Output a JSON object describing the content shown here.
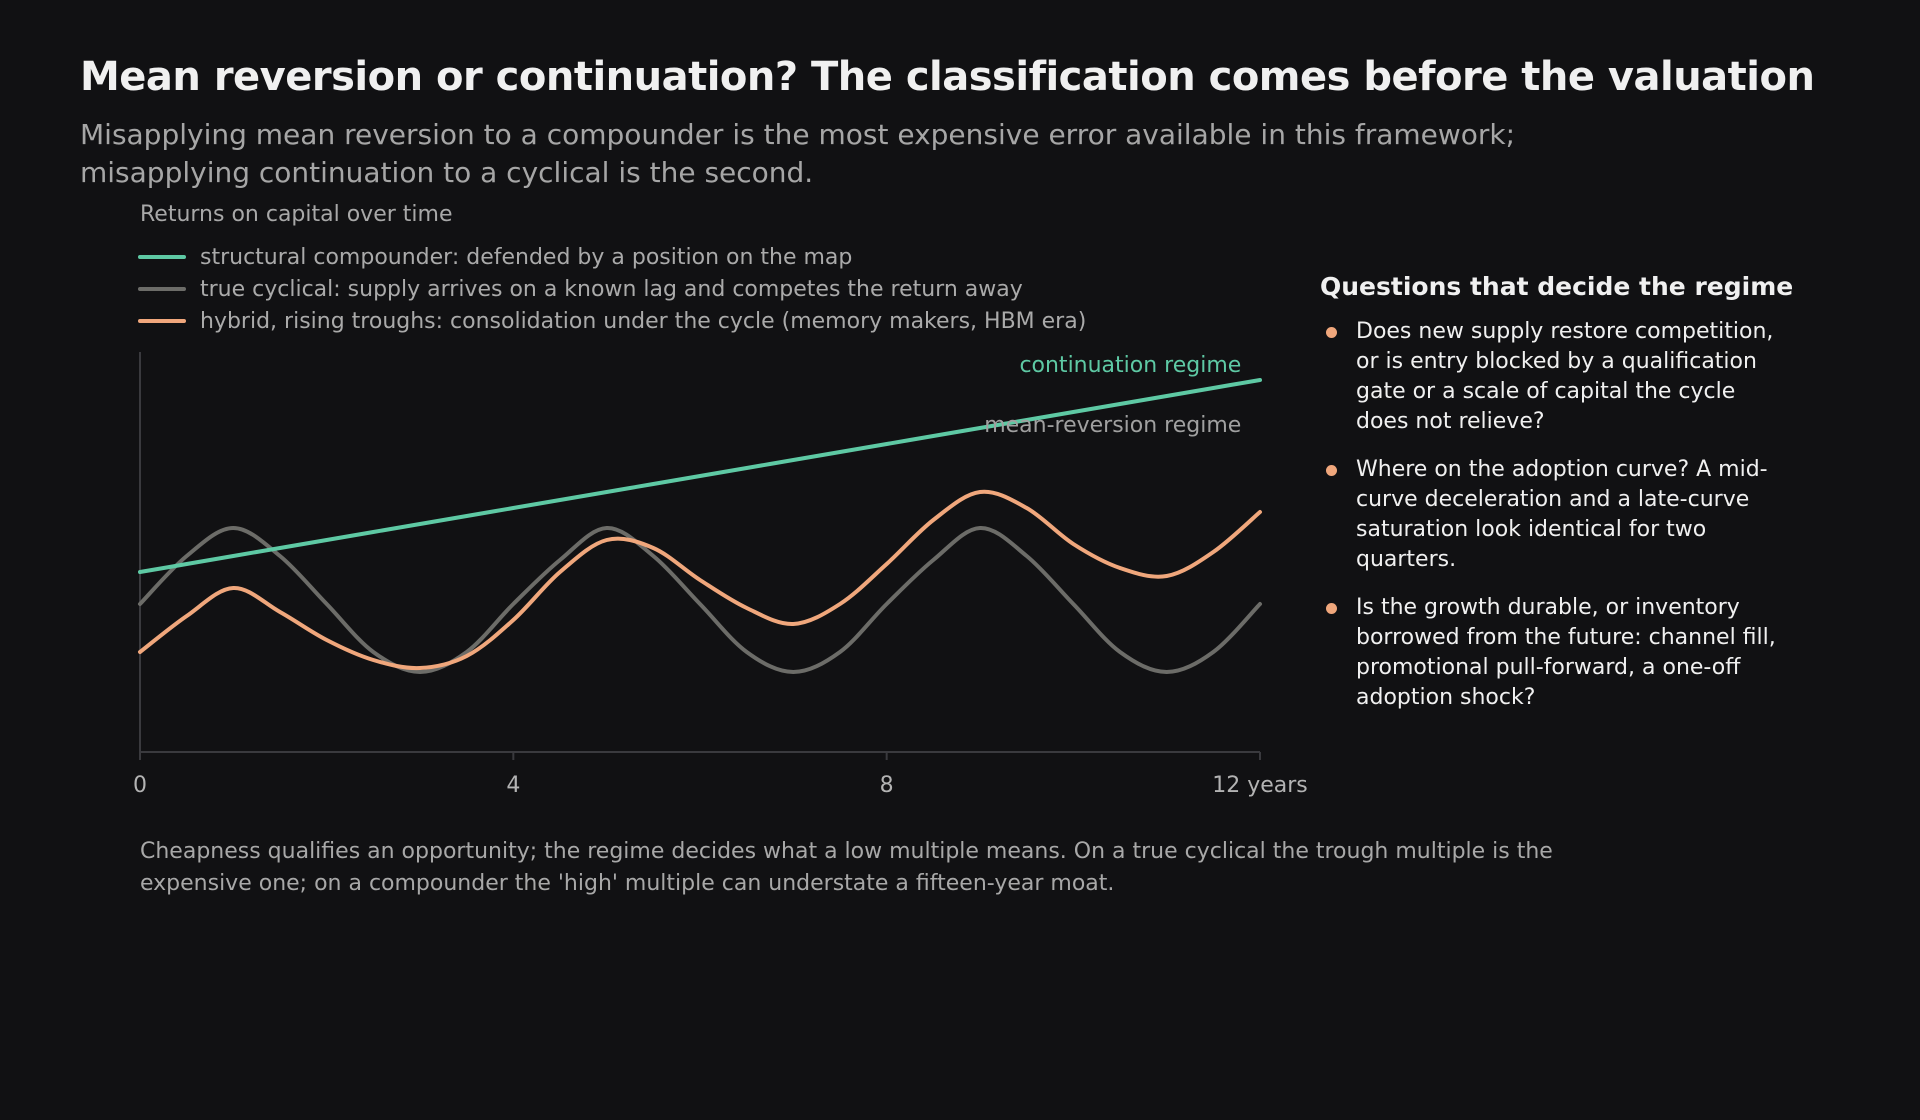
{
  "title": "Mean reversion or continuation? The classification comes before the valuation",
  "subtitle": "Misapplying mean reversion to a compounder is the most expensive error available in this framework; misapplying continuation to a cyclical is the second.",
  "chart_heading": "Returns on capital over time",
  "colors": {
    "compounder": "#5ec9a4",
    "cyclical": "#6c6c68",
    "hybrid": "#f0a77c",
    "axis": "#3a3a3e",
    "tick_text": "#b3b3b3",
    "bullet": "#f0a77c"
  },
  "legend": [
    {
      "label": "structural compounder: defended by a position on the map",
      "color": "#5ec9a4"
    },
    {
      "label": "true cyclical: supply arrives on a known lag and competes the return away",
      "color": "#6c6c68"
    },
    {
      "label": "hybrid, rising troughs: consolidation under the cycle (memory makers, HBM era)",
      "color": "#f0a77c"
    }
  ],
  "chart_data": {
    "type": "line",
    "title": "Returns on capital over time",
    "xlabel": "years",
    "xlim": [
      0,
      12
    ],
    "x_ticks": [
      "0",
      "4",
      "8",
      "12 years"
    ],
    "x_tick_values": [
      0,
      4,
      8,
      12
    ],
    "ylim": [
      0,
      100
    ],
    "y_ticks_shown": false,
    "legend_position": "top-left",
    "x": [
      0,
      0.5,
      1,
      1.5,
      2,
      2.5,
      3,
      3.5,
      4,
      4.5,
      5,
      5.5,
      6,
      6.5,
      7,
      7.5,
      8,
      8.5,
      9,
      9.5,
      10,
      10.5,
      11,
      11.5,
      12
    ],
    "series": [
      {
        "name": "structural compounder: defended by a position on the map",
        "values": [
          45,
          47,
          49,
          51,
          53,
          55,
          57,
          59,
          61,
          63,
          65,
          67,
          69,
          71,
          73,
          75,
          77,
          79,
          81,
          83,
          85,
          87,
          89,
          91,
          93
        ],
        "color": "#5ec9a4"
      },
      {
        "name": "true cyclical: supply arrives on a known lag and competes the return away",
        "values": [
          37,
          49,
          56,
          49,
          37,
          25,
          20,
          25,
          37,
          48,
          56,
          49,
          37,
          25,
          20,
          25,
          37,
          48,
          56,
          49,
          37,
          25,
          20,
          25,
          37
        ],
        "color": "#6c6c68"
      },
      {
        "name": "hybrid, rising troughs: consolidation under the cycle (memory makers, HBM era)",
        "values": [
          25,
          34,
          41,
          35,
          28,
          23,
          21,
          24,
          33,
          45,
          53,
          51,
          43,
          36,
          32,
          37,
          47,
          58,
          65,
          61,
          52,
          46,
          44,
          50,
          60
        ],
        "color": "#f0a77c"
      }
    ],
    "annotations": [
      {
        "text": "continuation regime",
        "x": 11.8,
        "y": 97,
        "color": "#5ec9a4"
      },
      {
        "text": "mean-reversion regime",
        "x": 11.8,
        "y": 82,
        "color": "#a0a0a0"
      }
    ]
  },
  "side": {
    "title": "Questions that decide the regime",
    "questions": [
      "Does new supply restore competition, or is entry blocked by a qualification gate or a scale of capital the cycle does not relieve?",
      "Where on the adoption curve? A mid-curve deceleration and a late-curve saturation look identical for two quarters.",
      "Is the growth durable, or inventory borrowed from the future: channel fill, promotional pull-forward, a one-off adoption shock?"
    ]
  },
  "footnote": "Cheapness qualifies an opportunity; the regime decides what a low multiple means. On a true cyclical the trough multiple is the expensive one; on a compounder the 'high' multiple can understate a fifteen-year moat."
}
